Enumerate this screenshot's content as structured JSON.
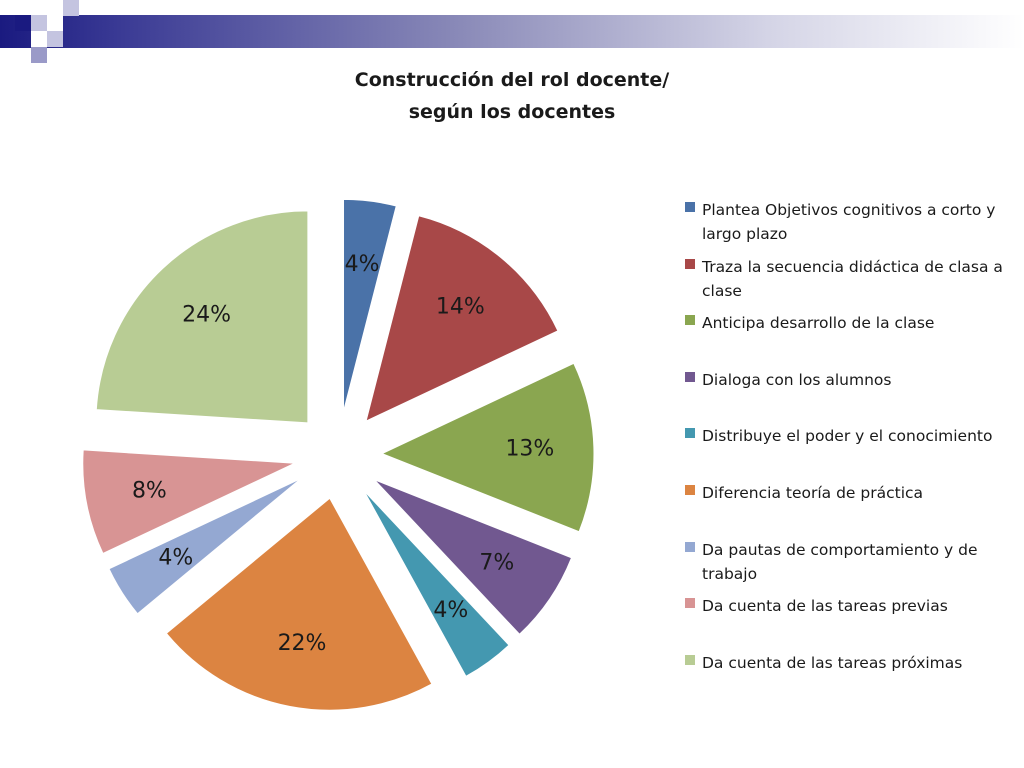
{
  "title_lines": [
    "Construcción del rol docente/",
    "según los docentes"
  ],
  "chart_data": {
    "type": "pie",
    "title": "Construcción del rol docente/ según los docentes",
    "exploded": true,
    "legend_position": "right",
    "labels": [
      "Plantea Objetivos cognitivos a corto y largo plazo",
      "Traza la secuencia didáctica de clasa a clase",
      "Anticipa desarrollo de la clase",
      "Dialoga con los alumnos",
      "Distribuye el poder y el conocimiento",
      "Diferencia teoría de práctica",
      "Da pautas de comportamiento y de trabajo",
      "Da cuenta de las tareas previas",
      "Da cuenta de las tareas próximas"
    ],
    "values": [
      4,
      14,
      13,
      7,
      4,
      22,
      4,
      8,
      24
    ],
    "value_labels": [
      "4%",
      "14%",
      "13%",
      "7%",
      "4%",
      "22%",
      "4%",
      "8%",
      "24%"
    ],
    "colors": [
      "#4a72a8",
      "#a84848",
      "#8aa650",
      "#715890",
      "#4498b0",
      "#dc8441",
      "#94a8d2",
      "#d89494",
      "#b8cc94"
    ]
  }
}
